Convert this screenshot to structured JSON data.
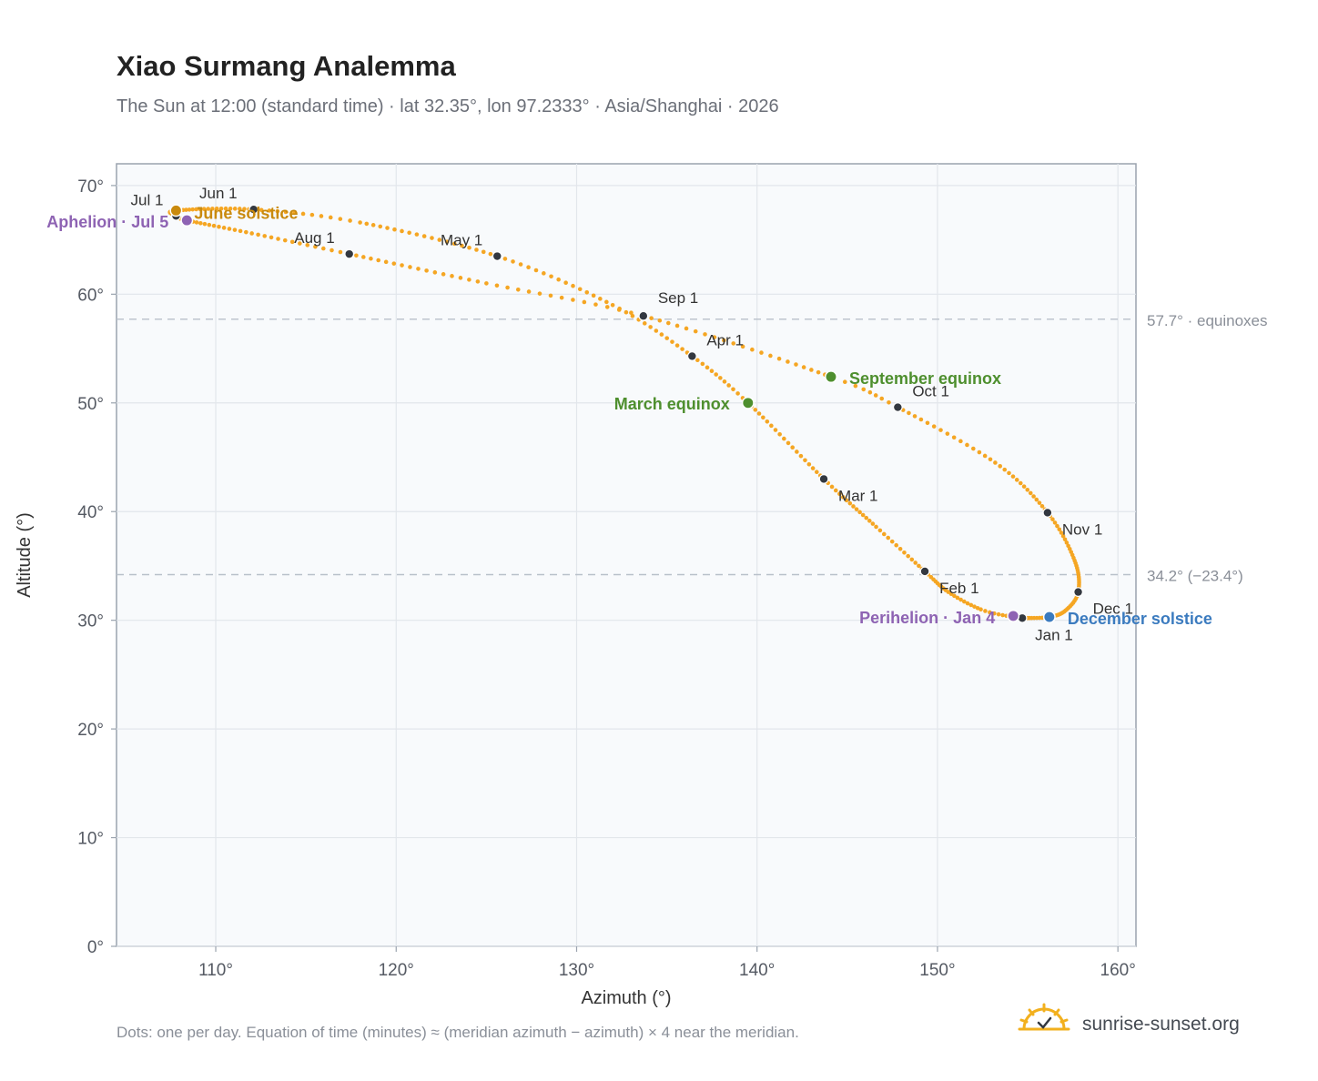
{
  "header": {
    "title": "Xiao Surmang Analemma",
    "subtitle": "The Sun at 12:00 (standard time) · lat 32.35°, lon 97.2333° · Asia/Shanghai · 2026"
  },
  "footer": {
    "note": "Dots: one per day. Equation of time (minutes) ≈ (meridian azimuth − azimuth) × 4 near the meridian.",
    "brand": "sunrise-sunset.org"
  },
  "colors": {
    "path": "#f5a623",
    "month_dot": "#333840",
    "equinox": "#4e8f2e",
    "june_solstice": "#c98a0e",
    "december_solstice": "#3b7bbf",
    "apsis": "#8e63b3",
    "ref_line": "#b8c0ca",
    "grid": "#e2e6eb",
    "plot_bg": "#f8fafc",
    "frame": "#9aa3ae"
  },
  "chart_data": {
    "type": "scatter",
    "xlabel": "Azimuth (°)",
    "ylabel": "Altitude (°)",
    "xlim": [
      104.5,
      161
    ],
    "ylim": [
      0,
      72
    ],
    "xticks": [
      {
        "value": 110,
        "label": "110°"
      },
      {
        "value": 120,
        "label": "120°"
      },
      {
        "value": 130,
        "label": "130°"
      },
      {
        "value": 140,
        "label": "140°"
      },
      {
        "value": 150,
        "label": "150°"
      },
      {
        "value": 160,
        "label": "160°"
      }
    ],
    "yticks": [
      {
        "value": 0,
        "label": "0°"
      },
      {
        "value": 10,
        "label": "10°"
      },
      {
        "value": 20,
        "label": "20°"
      },
      {
        "value": 30,
        "label": "30°"
      },
      {
        "value": 40,
        "label": "40°"
      },
      {
        "value": 50,
        "label": "50°"
      },
      {
        "value": 60,
        "label": "60°"
      },
      {
        "value": 70,
        "label": "70°"
      }
    ],
    "grid": true,
    "reference_lines": [
      {
        "y": 57.7,
        "label": "57.7° · equinoxes"
      },
      {
        "y": 34.2,
        "label": "34.2° (−23.4°)"
      }
    ],
    "month_points": [
      {
        "label": "Jan 1",
        "az": 154.7,
        "alt": 30.2
      },
      {
        "label": "Feb 1",
        "az": 149.3,
        "alt": 34.5
      },
      {
        "label": "Mar 1",
        "az": 143.7,
        "alt": 43.0
      },
      {
        "label": "Apr 1",
        "az": 136.4,
        "alt": 54.3
      },
      {
        "label": "May 1",
        "az": 125.6,
        "alt": 63.5
      },
      {
        "label": "Jun 1",
        "az": 112.1,
        "alt": 67.8
      },
      {
        "label": "Jul 1",
        "az": 107.8,
        "alt": 67.2
      },
      {
        "label": "Aug 1",
        "az": 117.4,
        "alt": 63.7
      },
      {
        "label": "Sep 1",
        "az": 133.7,
        "alt": 58.0
      },
      {
        "label": "Oct 1",
        "az": 147.8,
        "alt": 49.6
      },
      {
        "label": "Nov 1",
        "az": 156.1,
        "alt": 39.9
      },
      {
        "label": "Dec 1",
        "az": 157.8,
        "alt": 32.6
      }
    ],
    "events": [
      {
        "label": "March equinox",
        "az": 139.5,
        "alt": 50.0,
        "color_key": "equinox"
      },
      {
        "label": "June solstice",
        "az": 107.8,
        "alt": 67.7,
        "color_key": "june_solstice"
      },
      {
        "label": "September equinox",
        "az": 144.1,
        "alt": 52.4,
        "color_key": "equinox"
      },
      {
        "label": "December solstice",
        "az": 156.2,
        "alt": 30.3,
        "color_key": "december_solstice"
      },
      {
        "label": "Perihelion · Jan 4",
        "az": 154.2,
        "alt": 30.4,
        "color_key": "apsis"
      },
      {
        "label": "Aphelion · Jul 5",
        "az": 108.4,
        "alt": 66.8,
        "color_key": "apsis"
      }
    ],
    "path_anchors": [
      [
        1,
        154.7,
        30.2
      ],
      [
        5,
        154.0,
        30.35
      ],
      [
        12,
        152.4,
        31.0
      ],
      [
        22,
        150.6,
        32.6
      ],
      [
        32,
        149.3,
        34.5
      ],
      [
        45,
        146.6,
        38.6
      ],
      [
        60,
        143.7,
        43.0
      ],
      [
        79,
        139.5,
        50.0
      ],
      [
        91,
        136.4,
        54.3
      ],
      [
        105,
        132.0,
        59.0
      ],
      [
        121,
        125.6,
        63.5
      ],
      [
        140,
        118.0,
        66.6
      ],
      [
        152,
        112.1,
        67.8
      ],
      [
        172,
        107.8,
        67.7
      ],
      [
        182,
        107.8,
        67.2
      ],
      [
        186,
        108.4,
        66.8
      ],
      [
        200,
        112.0,
        65.6
      ],
      [
        213,
        117.4,
        63.7
      ],
      [
        230,
        125.0,
        61.0
      ],
      [
        244,
        133.7,
        58.0
      ],
      [
        266,
        144.1,
        52.4
      ],
      [
        274,
        147.8,
        49.6
      ],
      [
        290,
        153.2,
        44.5
      ],
      [
        305,
        156.1,
        39.9
      ],
      [
        320,
        157.6,
        35.5
      ],
      [
        335,
        157.8,
        32.6
      ],
      [
        345,
        157.1,
        30.9
      ],
      [
        355,
        156.2,
        30.3
      ],
      [
        365,
        154.9,
        30.2
      ],
      [
        366,
        154.7,
        30.2
      ]
    ]
  }
}
